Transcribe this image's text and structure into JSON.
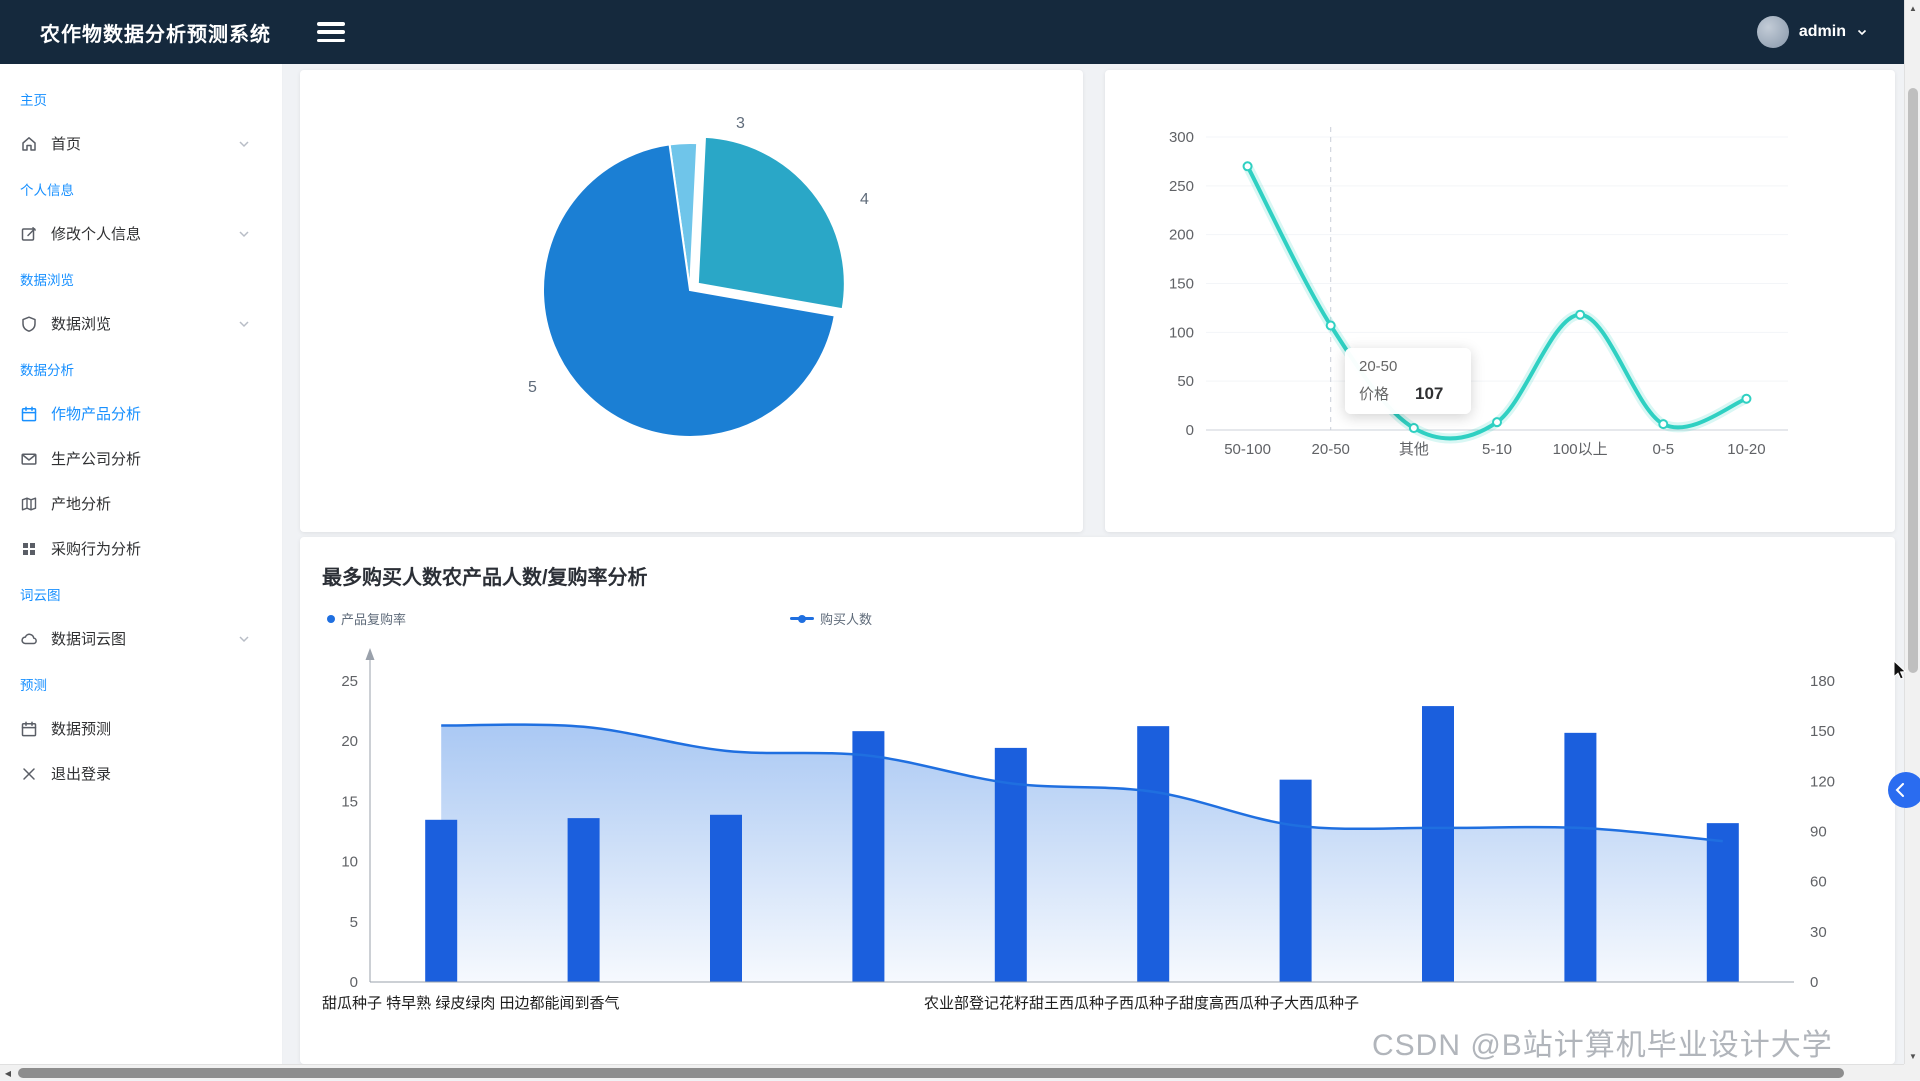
{
  "header": {
    "title": "农作物数据分析预测系统",
    "user": "admin"
  },
  "sidebar": {
    "sec_home": "主页",
    "item_home": "首页",
    "sec_profile": "个人信息",
    "item_edit_profile": "修改个人信息",
    "sec_browse": "数据浏览",
    "item_browse": "数据浏览",
    "sec_analysis": "数据分析",
    "item_crop_analysis": "作物产品分析",
    "item_company_analysis": "生产公司分析",
    "item_origin_analysis": "产地分析",
    "item_purchase_analysis": "采购行为分析",
    "sec_wordcloud": "词云图",
    "item_wordcloud": "数据词云图",
    "sec_predict": "预测",
    "item_predict": "数据预测",
    "item_logout": "退出登录"
  },
  "icons": {
    "menu": "hamburger-icon",
    "user_dropdown": "chevron-down-icon",
    "panel_toggle": "chevron-left-icon"
  },
  "colors": {
    "header_bg": "#15293d",
    "accent_blue": "#1890ff",
    "bar_blue": "#1b5fdd",
    "line_teal": "#2fd0c2"
  },
  "watermark": "CSDN @B站计算机毕业设计大学",
  "chart_data": [
    {
      "type": "pie",
      "categories": [
        "3",
        "4",
        "5"
      ],
      "values": [
        3,
        27,
        70
      ],
      "colors": [
        "#6fc5ea",
        "#2aa7c7",
        "#1b7fd4"
      ],
      "legend_position": "none"
    },
    {
      "type": "line",
      "categories": [
        "50-100",
        "20-50",
        "其他",
        "5-10",
        "100以上",
        "0-5",
        "10-20"
      ],
      "values": [
        270,
        107,
        2,
        8,
        118,
        6,
        32
      ],
      "ylim": [
        0,
        300
      ],
      "yticks": [
        0,
        50,
        100,
        150,
        200,
        250,
        300
      ],
      "line_color": "#2fd0c2",
      "grid": false,
      "tooltip": {
        "category": "20-50",
        "label": "价格",
        "value": "107"
      }
    },
    {
      "type": "bar-line",
      "title": "最多购买人数农产品人数/复购率分析",
      "legend": [
        {
          "label": "产品复购率",
          "marker": "dot"
        },
        {
          "label": "购买人数",
          "marker": "line"
        }
      ],
      "left_ylim": [
        0,
        25
      ],
      "left_yticks": [
        0,
        5,
        10,
        15,
        20,
        25
      ],
      "right_ylim": [
        0,
        180
      ],
      "right_yticks": [
        0,
        30,
        60,
        90,
        120,
        150,
        180
      ],
      "bars": {
        "name": "购买人数",
        "axis": "right",
        "color": "#1b5fdd",
        "values": [
          97,
          98,
          100,
          150,
          140,
          153,
          121,
          165,
          149,
          95
        ]
      },
      "line": {
        "name": "产品复购率",
        "axis": "left",
        "color": "#1f6fe0",
        "values": [
          21.3,
          21.2,
          19.2,
          18.8,
          16.5,
          15.8,
          13.0,
          12.8,
          12.8,
          11.7
        ]
      },
      "x_labels": [
        "甜瓜种子 特早熟 绿皮绿肉 田边都能闻到香气",
        "农业部登记花籽甜王西瓜种子西瓜种子甜度高西瓜种子大西瓜种子"
      ]
    }
  ]
}
